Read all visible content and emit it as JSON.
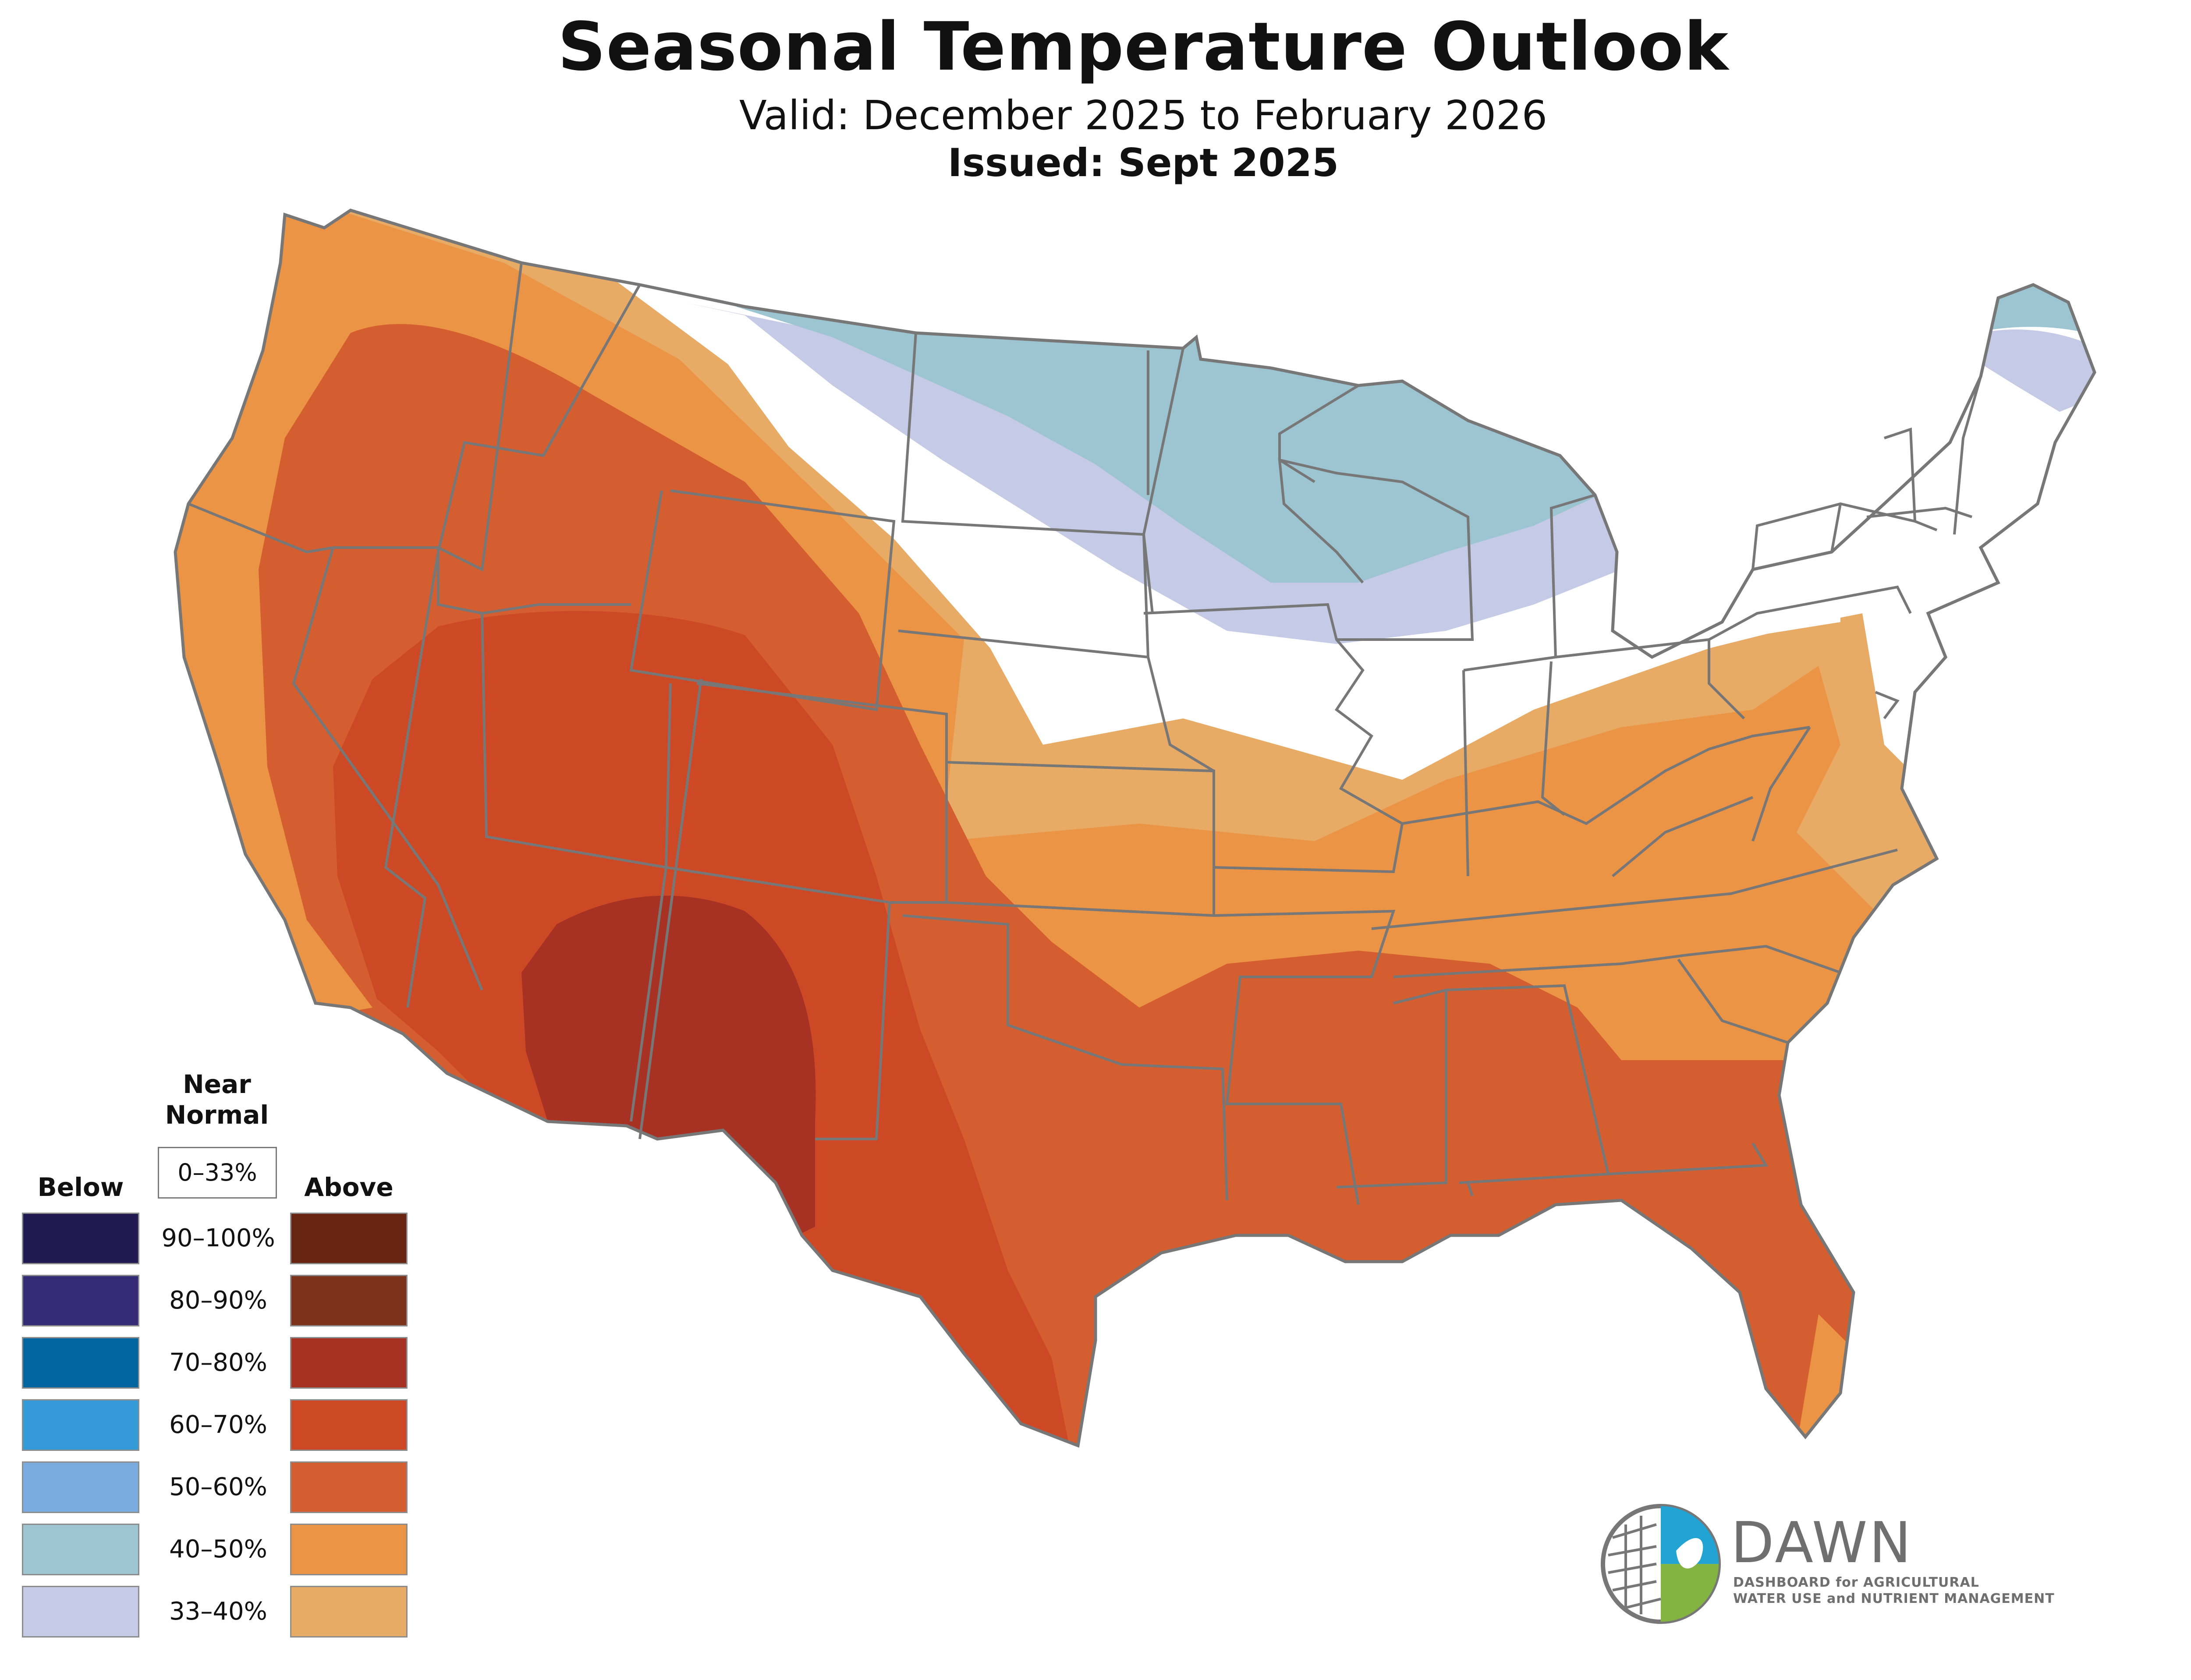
{
  "title": "Seasonal Temperature Outlook",
  "subtitle": "Valid: December 2025 to February 2026",
  "issued": "Issued: Sept 2025",
  "legend": {
    "below_label": "Below",
    "above_label": "Above",
    "near_normal_label": "Near Normal",
    "near_normal_range": "0–33%",
    "rows": [
      {
        "range": "90–100%",
        "below_color": "#211a50",
        "above_color": "#672411"
      },
      {
        "range": "80–90%",
        "below_color": "#352b74",
        "above_color": "#7d321b"
      },
      {
        "range": "70–80%",
        "below_color": "#01669f",
        "above_color": "#a73224"
      },
      {
        "range": "60–70%",
        "below_color": "#349ad8",
        "above_color": "#cd4925"
      },
      {
        "range": "50–60%",
        "below_color": "#7aacdf",
        "above_color": "#d55e31"
      },
      {
        "range": "40–50%",
        "below_color": "#9cc4d1",
        "above_color": "#ec9445"
      },
      {
        "range": "33–40%",
        "below_color": "#c5cae6",
        "above_color": "#e8ab66"
      }
    ]
  },
  "logo": {
    "name": "DAWN",
    "tagline_line1": "DASHBOARD for AGRICULTURAL",
    "tagline_line2": "WATER USE and NUTRIENT MANAGEMENT",
    "colors": {
      "blue": "#21a3d4",
      "green": "#83b341",
      "gray": "#777777"
    }
  },
  "map_colors": {
    "border": "#777777",
    "land": "#ffffff"
  }
}
